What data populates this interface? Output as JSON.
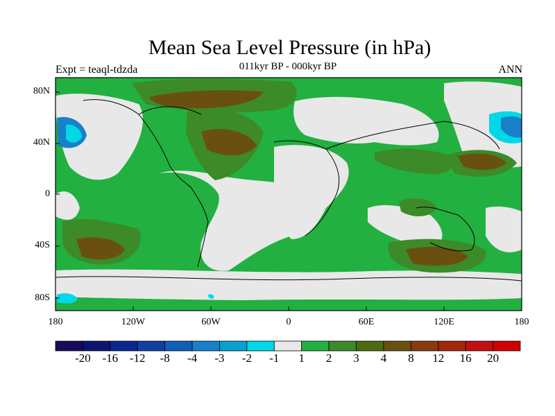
{
  "title": "Mean Sea Level Pressure (in hPa)",
  "subtitle": "011kyr BP - 000kyr BP",
  "left_label": "Expt = teaql-tdzda",
  "right_label": "ANN",
  "y_ticks": [
    "80N",
    "40N",
    "0",
    "40S",
    "80S"
  ],
  "x_ticks": [
    "180",
    "120W",
    "60W",
    "0",
    "60E",
    "120E",
    "180"
  ],
  "colorbar": {
    "colors": [
      "#1a0a5a",
      "#0c1470",
      "#0a2890",
      "#1040a0",
      "#1060b8",
      "#1880c8",
      "#08a0d0",
      "#00d8e8",
      "#e8e8e8",
      "#22b040",
      "#3c8a28",
      "#4e6a10",
      "#6a5010",
      "#8a3a10",
      "#a02a0a",
      "#c01010",
      "#d00000"
    ],
    "labels": [
      "-20",
      "-16",
      "-12",
      "-8",
      "-4",
      "-3",
      "-2",
      "-1",
      "1",
      "2",
      "3",
      "4",
      "8",
      "12",
      "16",
      "20"
    ]
  },
  "map_colors": {
    "ocean_base": "#22b040",
    "neutral": "#e8e8e8",
    "level_3": "#3c8a28",
    "level_4": "#4e6a10",
    "level_8": "#6a5010",
    "neg_1": "#00d8e8",
    "neg_2": "#08a0d0",
    "neg_3": "#1880c8"
  }
}
